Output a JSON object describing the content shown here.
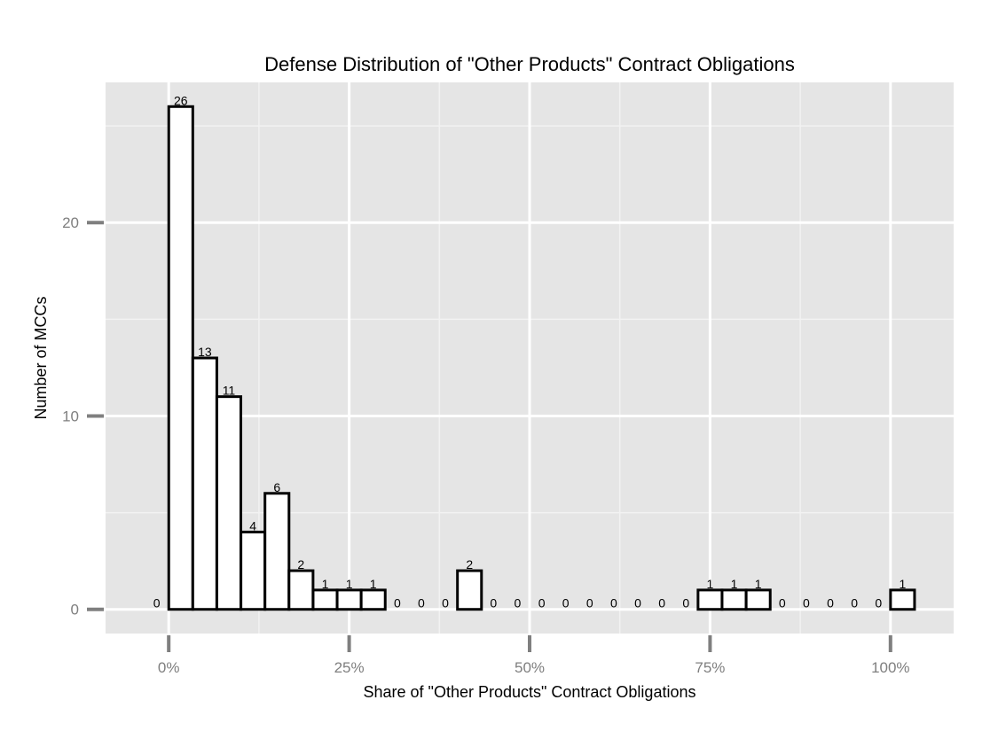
{
  "chart_data": {
    "type": "bar",
    "title": "Defense Distribution of \"Other Products\" Contract Obligations",
    "xlabel": "Share of \"Other Products\" Contract Obligations",
    "ylabel": "Number of MCCs",
    "x_ticks": [
      {
        "value": 0,
        "label": "0%"
      },
      {
        "value": 0.25,
        "label": "25%"
      },
      {
        "value": 0.5,
        "label": "50%"
      },
      {
        "value": 0.75,
        "label": "75%"
      },
      {
        "value": 1.0,
        "label": "100%"
      }
    ],
    "y_ticks": [
      {
        "value": 0,
        "label": "0"
      },
      {
        "value": 10,
        "label": "10"
      },
      {
        "value": 20,
        "label": "20"
      }
    ],
    "xlim": [
      -0.0875,
      1.0875
    ],
    "ylim": [
      -1.25,
      27.25
    ],
    "bin_width": 0.0333,
    "bins": [
      {
        "center": -0.0167,
        "value": 0
      },
      {
        "center": 0.0167,
        "value": 26
      },
      {
        "center": 0.05,
        "value": 13
      },
      {
        "center": 0.0833,
        "value": 11
      },
      {
        "center": 0.1167,
        "value": 4
      },
      {
        "center": 0.15,
        "value": 6
      },
      {
        "center": 0.1833,
        "value": 2
      },
      {
        "center": 0.2167,
        "value": 1
      },
      {
        "center": 0.25,
        "value": 1
      },
      {
        "center": 0.2833,
        "value": 1
      },
      {
        "center": 0.3167,
        "value": 0
      },
      {
        "center": 0.35,
        "value": 0
      },
      {
        "center": 0.3833,
        "value": 0
      },
      {
        "center": 0.4167,
        "value": 2
      },
      {
        "center": 0.45,
        "value": 0
      },
      {
        "center": 0.4833,
        "value": 0
      },
      {
        "center": 0.5167,
        "value": 0
      },
      {
        "center": 0.55,
        "value": 0
      },
      {
        "center": 0.5833,
        "value": 0
      },
      {
        "center": 0.6167,
        "value": 0
      },
      {
        "center": 0.65,
        "value": 0
      },
      {
        "center": 0.6833,
        "value": 0
      },
      {
        "center": 0.7167,
        "value": 0
      },
      {
        "center": 0.75,
        "value": 1
      },
      {
        "center": 0.7833,
        "value": 1
      },
      {
        "center": 0.8167,
        "value": 1
      },
      {
        "center": 0.85,
        "value": 0
      },
      {
        "center": 0.8833,
        "value": 0
      },
      {
        "center": 0.9167,
        "value": 0
      },
      {
        "center": 0.95,
        "value": 0
      },
      {
        "center": 0.9833,
        "value": 0
      },
      {
        "center": 1.0167,
        "value": 1
      }
    ],
    "grid": true,
    "colors": {
      "panel": "#e5e5e5",
      "grid_major": "#ffffff",
      "grid_minor": "#f2f2f2",
      "bar_fill": "#ffffff",
      "bar_stroke": "#000000",
      "tick_mark": "#7f7f7f"
    }
  }
}
